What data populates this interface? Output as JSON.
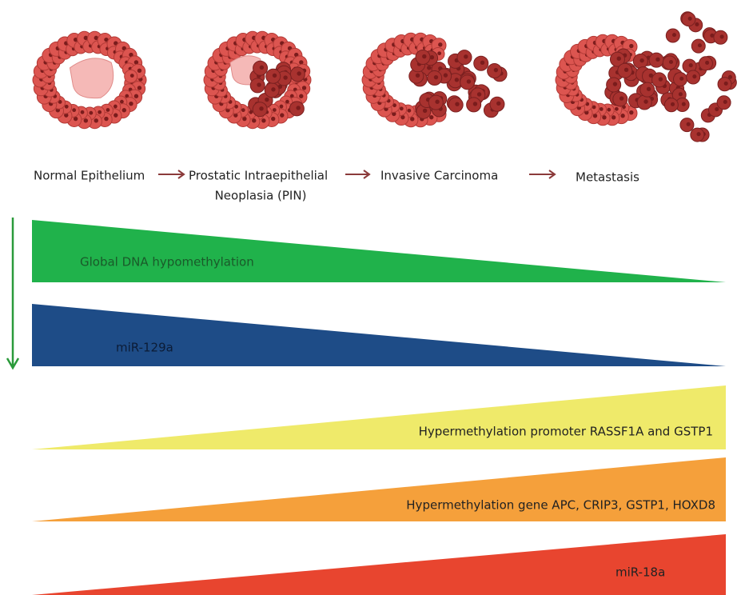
{
  "stages": [
    {
      "lines": [
        "Normal Epithelium"
      ]
    },
    {
      "lines": [
        "Prostatic Intraepithelial",
        "Neoplasia (PIN)"
      ]
    },
    {
      "lines": [
        "Invasive Carcinoma"
      ]
    },
    {
      "lines": [
        "Metastasis"
      ]
    }
  ],
  "trends": [
    {
      "label": "Global DNA hypomethylation"
    },
    {
      "label": "miR-129a"
    },
    {
      "label": "Hypermethylation promoter RASSF1A and GSTP1"
    },
    {
      "label": "Hypermethylation gene APC, CRIP3, GSTP1,  HOXD8"
    },
    {
      "label": "miR-18a"
    }
  ]
}
